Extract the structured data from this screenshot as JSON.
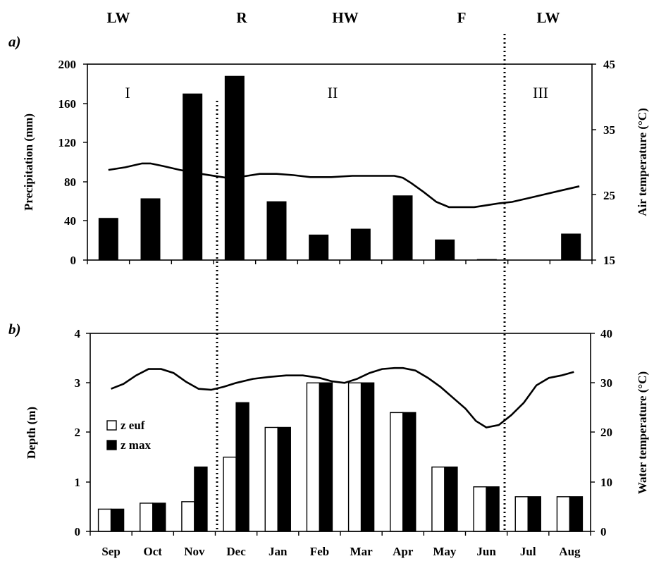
{
  "chart_data": [
    {
      "type": "bar",
      "panel": "a)",
      "categories": [
        "Sep",
        "Oct",
        "Nov",
        "Dec",
        "Jan",
        "Feb",
        "Mar",
        "Apr",
        "May",
        "Jun",
        "Jul",
        "Aug"
      ],
      "ylabel": "Precipitation (mm)",
      "ylim": [
        0,
        200
      ],
      "yticks": [
        "0",
        "40",
        "80",
        "120",
        "160",
        "200"
      ],
      "y2label": "Air temperature (°C)",
      "y2lim": [
        15,
        45
      ],
      "y2ticks": [
        "15",
        "25",
        "35",
        "45"
      ],
      "series": [
        {
          "name": "",
          "kind": "bar",
          "axis": "left",
          "color": "#000000",
          "values": [
            43,
            63,
            170,
            188,
            60,
            26,
            32,
            66,
            21,
            1,
            0,
            27
          ]
        },
        {
          "name": "",
          "kind": "line",
          "axis": "right",
          "color": "#000000",
          "x": [
            0,
            0.4,
            0.8,
            1.0,
            1.3,
            1.7,
            2.2,
            2.8,
            3.0,
            3.3,
            3.6,
            4.0,
            4.4,
            4.8,
            5.3,
            5.8,
            6.3,
            6.8,
            7.0,
            7.2,
            7.5,
            7.8,
            8.1,
            8.4,
            8.7,
            9.0,
            9.3,
            9.6,
            10.0,
            10.4,
            10.8,
            11.2
          ],
          "values": [
            28.8,
            29.2,
            29.8,
            29.8,
            29.4,
            28.8,
            28.2,
            27.6,
            27.6,
            27.9,
            28.2,
            28.2,
            28.0,
            27.7,
            27.7,
            27.9,
            27.9,
            27.9,
            27.6,
            26.8,
            25.4,
            23.9,
            23.1,
            23.1,
            23.1,
            23.4,
            23.7,
            23.9,
            24.5,
            25.1,
            25.7,
            26.3
          ]
        }
      ],
      "annotations": [
        "I",
        "II",
        "III"
      ]
    },
    {
      "type": "bar",
      "panel": "b)",
      "categories": [
        "Sep",
        "Oct",
        "Nov",
        "Dec",
        "Jan",
        "Feb",
        "Mar",
        "Apr",
        "May",
        "Jun",
        "Jul",
        "Aug"
      ],
      "ylabel": "Depth (m)",
      "ylim": [
        0,
        4
      ],
      "yticks": [
        "0",
        "1",
        "2",
        "3",
        "4"
      ],
      "y2label": "Water temperature (°C)",
      "y2lim": [
        0,
        40
      ],
      "y2ticks": [
        "0",
        "10",
        "20",
        "30",
        "40"
      ],
      "series": [
        {
          "name": "z euf",
          "kind": "bar",
          "axis": "left",
          "color": "#ffffff",
          "values": [
            0.45,
            0.57,
            0.6,
            1.5,
            2.1,
            3.0,
            3.0,
            2.4,
            1.3,
            0.9,
            0.7,
            0.7
          ]
        },
        {
          "name": "z max",
          "kind": "bar",
          "axis": "left",
          "color": "#000000",
          "values": [
            0.45,
            0.57,
            1.3,
            2.6,
            2.1,
            3.0,
            3.0,
            2.4,
            1.3,
            0.9,
            0.7,
            0.7
          ]
        },
        {
          "name": "",
          "kind": "line",
          "axis": "right",
          "color": "#000000",
          "x": [
            0,
            0.3,
            0.6,
            0.9,
            1.2,
            1.5,
            1.8,
            2.1,
            2.4,
            2.7,
            3.0,
            3.4,
            3.8,
            4.2,
            4.6,
            5.0,
            5.3,
            5.6,
            5.9,
            6.2,
            6.5,
            6.8,
            7.0,
            7.3,
            7.6,
            7.9,
            8.2,
            8.5,
            8.75,
            9.0,
            9.3,
            9.6,
            9.9,
            10.2,
            10.5,
            10.8,
            11.1
          ],
          "values": [
            28.8,
            29.8,
            31.5,
            32.8,
            32.8,
            32.0,
            30.2,
            28.8,
            28.6,
            29.2,
            30.0,
            30.8,
            31.2,
            31.5,
            31.5,
            31.0,
            30.3,
            30.0,
            30.8,
            32.0,
            32.8,
            33.0,
            33.0,
            32.5,
            31.0,
            29.2,
            27.0,
            24.8,
            22.3,
            21.0,
            21.5,
            23.5,
            26.0,
            29.5,
            31.0,
            31.5,
            32.2
          ]
        }
      ]
    }
  ],
  "phases": [
    {
      "label": "LW",
      "center_month": -0.3
    },
    {
      "label": "R",
      "center_month": 3.3
    },
    {
      "label": "HW",
      "center_month": 5.05
    },
    {
      "label": "F",
      "center_month": 7.95
    },
    {
      "label": "LW",
      "center_month": 10.2
    }
  ],
  "phase_dividers_months": [
    2.75,
    9.5
  ]
}
